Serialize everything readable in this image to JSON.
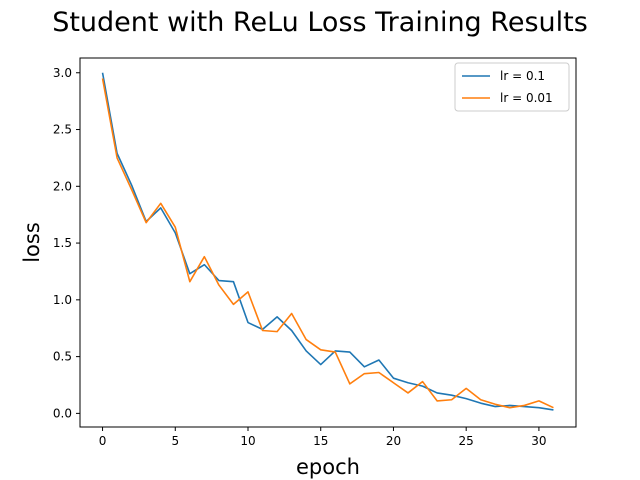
{
  "chart_data": {
    "type": "line",
    "title": "Student with ReLu Loss Training Results",
    "xlabel": "epoch",
    "ylabel": "loss",
    "xlim": [
      -1.55,
      32.55
    ],
    "ylim": [
      -0.12,
      3.13
    ],
    "xticks": [
      0,
      5,
      10,
      15,
      20,
      25,
      30
    ],
    "xtick_labels": [
      "0",
      "5",
      "10",
      "15",
      "20",
      "25",
      "30"
    ],
    "yticks": [
      0.0,
      0.5,
      1.0,
      1.5,
      2.0,
      2.5,
      3.0
    ],
    "ytick_labels": [
      "0.0",
      "0.5",
      "1.0",
      "1.5",
      "2.0",
      "2.5",
      "3.0"
    ],
    "grid": false,
    "legend": "top-right",
    "x": [
      0,
      1,
      2,
      3,
      4,
      5,
      6,
      7,
      8,
      9,
      10,
      11,
      12,
      13,
      14,
      15,
      16,
      17,
      18,
      19,
      20,
      21,
      22,
      23,
      24,
      25,
      26,
      27,
      28,
      29,
      30,
      31
    ],
    "series": [
      {
        "name": "lr = 0.1",
        "color": "#1f77b4",
        "values": [
          3.0,
          2.29,
          2.01,
          1.69,
          1.81,
          1.59,
          1.23,
          1.31,
          1.17,
          1.16,
          0.8,
          0.74,
          0.85,
          0.73,
          0.55,
          0.43,
          0.55,
          0.54,
          0.41,
          0.47,
          0.31,
          0.27,
          0.24,
          0.18,
          0.16,
          0.13,
          0.09,
          0.06,
          0.07,
          0.06,
          0.05,
          0.03
        ]
      },
      {
        "name": "lr = 0.01",
        "color": "#ff7f0e",
        "values": [
          2.95,
          2.25,
          1.97,
          1.68,
          1.85,
          1.64,
          1.16,
          1.38,
          1.13,
          0.96,
          1.07,
          0.73,
          0.72,
          0.88,
          0.65,
          0.56,
          0.54,
          0.26,
          0.35,
          0.36,
          0.27,
          0.18,
          0.28,
          0.11,
          0.12,
          0.22,
          0.12,
          0.08,
          0.05,
          0.07,
          0.11,
          0.05
        ]
      }
    ]
  }
}
